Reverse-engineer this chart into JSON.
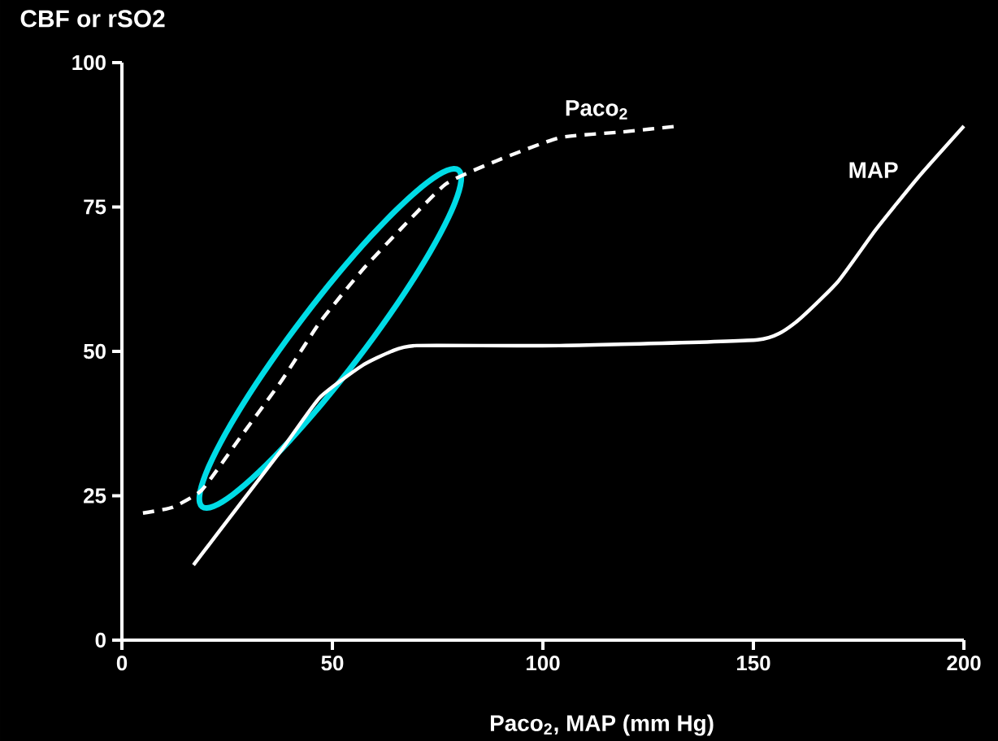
{
  "chart_data": {
    "type": "line",
    "xlabel": "Paco$_{2}$,   MAP   (mm Hg)",
    "ylabel": "CBF or rSO2",
    "xlim": [
      0,
      200
    ],
    "ylim": [
      0,
      100
    ],
    "xticks": [
      0,
      50,
      100,
      150,
      200
    ],
    "yticks": [
      0,
      25,
      50,
      75,
      100
    ],
    "legend": false,
    "grid": false,
    "marker": "none",
    "series": [
      {
        "name": "Paco$_{2}$",
        "color": "#ffffff",
        "line_style": "dashed",
        "x": [
          5,
          12,
          19,
          28,
          38,
          47,
          57,
          66,
          77,
          89,
          104,
          119,
          132
        ],
        "values": [
          22,
          23,
          26,
          35,
          45,
          55,
          64,
          71,
          79,
          83,
          87,
          88,
          89
        ]
      },
      {
        "name": "MAP",
        "color": "#ffffff",
        "line_style": "solid",
        "x": [
          17,
          28,
          38,
          47,
          57,
          64,
          70,
          104,
          151,
          160,
          170,
          179,
          189,
          200
        ],
        "values": [
          13,
          23.5,
          33,
          42,
          47.5,
          50,
          51,
          51,
          52,
          55,
          62,
          71,
          80,
          89
        ]
      }
    ]
  }
}
